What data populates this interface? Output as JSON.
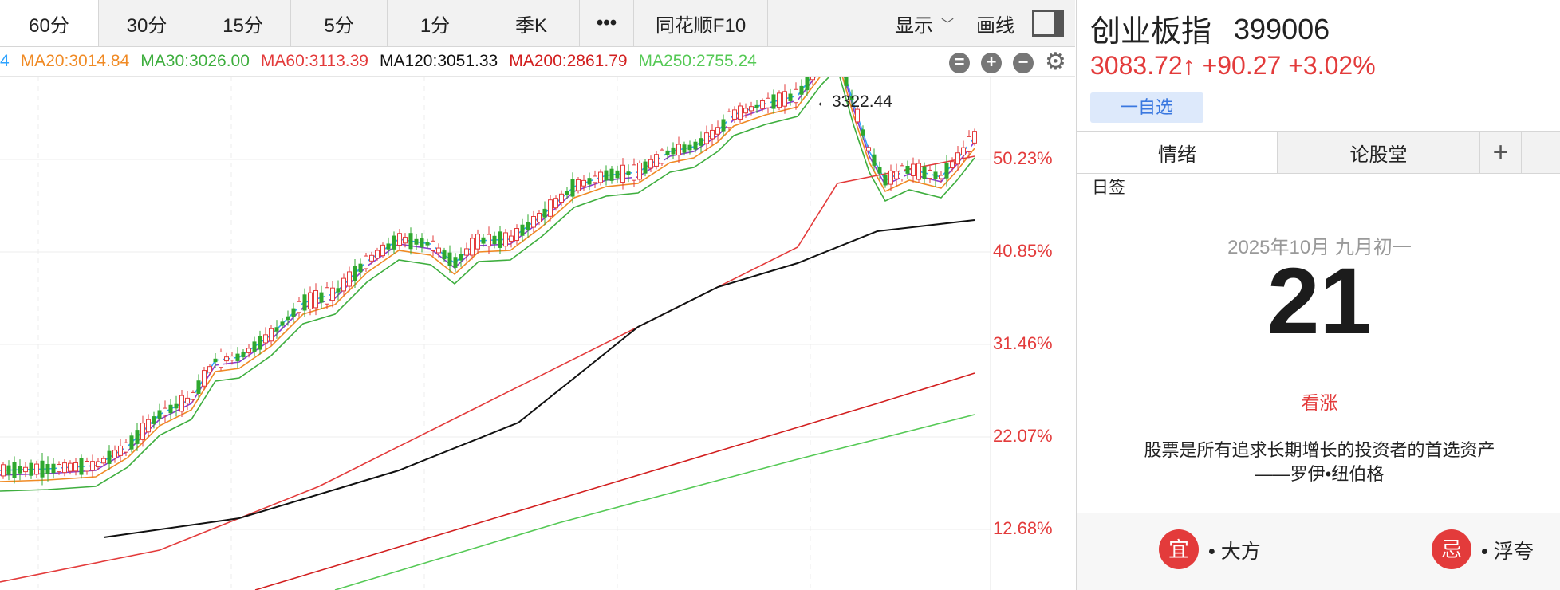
{
  "tabs": [
    {
      "label": "60分",
      "active": true
    },
    {
      "label": "30分"
    },
    {
      "label": "15分"
    },
    {
      "label": "5分"
    },
    {
      "label": "1分"
    },
    {
      "label": "季K"
    },
    {
      "label": "•••"
    },
    {
      "label": "同花顺F10"
    }
  ],
  "toolbar": {
    "display_label": "显示",
    "draw_label": "画线"
  },
  "ma_legend": [
    {
      "text": "4",
      "color": "#2ea3ff"
    },
    {
      "text": "MA20:3014.84",
      "color": "#f08a24"
    },
    {
      "text": "MA30:3026.00",
      "color": "#3eae3e"
    },
    {
      "text": "MA60:3113.39",
      "color": "#e33b3b"
    },
    {
      "text": "MA120:3051.33",
      "color": "#111111"
    },
    {
      "text": "MA200:2861.79",
      "color": "#d21f1f"
    },
    {
      "text": "MA250:2755.24",
      "color": "#55c955"
    }
  ],
  "chart_data": {
    "type": "candlestick",
    "y_axis_labels": [
      "50.23%",
      "40.85%",
      "31.46%",
      "22.07%",
      "12.68%"
    ],
    "peak_label": "←3322.44",
    "colors": {
      "up": "#e33b3b",
      "down": "#2ea82e"
    }
  },
  "stock": {
    "name": "创业板指",
    "code": "399006",
    "price_line": "3083.72↑ +90.27 +3.02%",
    "fav_label": "一自选"
  },
  "right_tabs": [
    {
      "label": "情绪",
      "active": true
    },
    {
      "label": "论股堂"
    },
    {
      "label": "+"
    }
  ],
  "calendar": {
    "section_label": "日签",
    "date_line": "2025年10月 九月初一",
    "day": "21",
    "mood": "看涨",
    "quote_line1": "股票是所有追求长期增长的投资者的首选资产",
    "quote_line2": "——罗伊•纽伯格",
    "yi_badge": "宜",
    "yi_text": "• 大方",
    "ji_badge": "忌",
    "ji_text": "• 浮夸"
  }
}
